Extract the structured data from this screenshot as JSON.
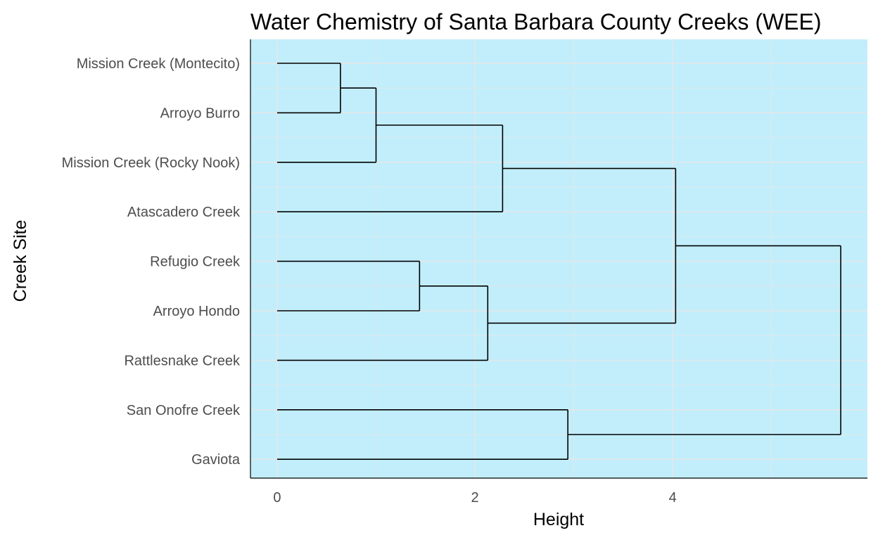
{
  "chart_data": {
    "type": "dendrogram",
    "title": "Water Chemistry of Santa Barbara County Creeks (WEE)",
    "xlabel": "Height",
    "ylabel": "Creek Site",
    "xlim": [
      -0.27,
      5.97
    ],
    "x_ticks": [
      "0",
      "2",
      "4"
    ],
    "leaves": [
      "Mission Creek (Montecito)",
      "Arroyo Burro",
      "Mission Creek (Rocky Nook)",
      "Atascadero Creek",
      "Refugio Creek",
      "Arroyo Hondo",
      "Rattlesnake Creek",
      "San Onofre Creek",
      "Gaviota"
    ],
    "merges": [
      {
        "left": "L0",
        "right": "L1",
        "height": 0.64
      },
      {
        "left": "M0",
        "right": "L2",
        "height": 1.0
      },
      {
        "left": "M1",
        "right": "L3",
        "height": 2.28
      },
      {
        "left": "L4",
        "right": "L5",
        "height": 1.44
      },
      {
        "left": "M3",
        "right": "L6",
        "height": 2.13
      },
      {
        "left": "M2",
        "right": "M4",
        "height": 4.03
      },
      {
        "left": "L7",
        "right": "L8",
        "height": 2.94
      },
      {
        "left": "M5",
        "right": "M6",
        "height": 5.7
      }
    ],
    "grid": true,
    "colors": {
      "panel_background": "#c2eefc",
      "grid": "#e6e6e6",
      "line": "#000000"
    }
  }
}
